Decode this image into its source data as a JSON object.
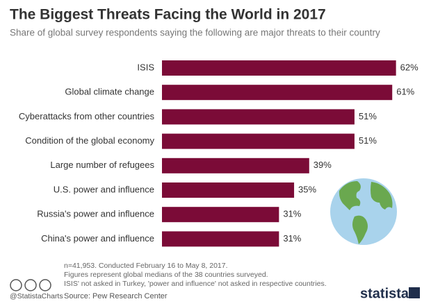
{
  "chart_data": {
    "type": "hbar",
    "title": "The Biggest Threats Facing the World in 2017",
    "subtitle": "Share of global survey respondents saying the following are major threats to their country",
    "categories": [
      "ISIS",
      "Global climate change",
      "Cyberattacks from other countries",
      "Condition of the global economy",
      "Large number of refugees",
      "U.S. power and influence",
      "Russia's power and influence",
      "China's power and influence"
    ],
    "values": [
      62,
      61,
      51,
      51,
      39,
      35,
      31,
      31
    ],
    "value_labels": [
      "62%",
      "61%",
      "51%",
      "51%",
      "39%",
      "35%",
      "31%",
      "31%"
    ],
    "color": "#7b0b37",
    "notes": [
      "n=41,953. Conducted February 16 to May 8, 2017.",
      "Figures represent global medians of the 38 countries surveyed.",
      "ISIS' not asked in Turkey, 'power and influence' not asked in respective countries."
    ],
    "credit": "@StatistaCharts",
    "source": "Source: Pew Research Center",
    "brand": "statista"
  }
}
